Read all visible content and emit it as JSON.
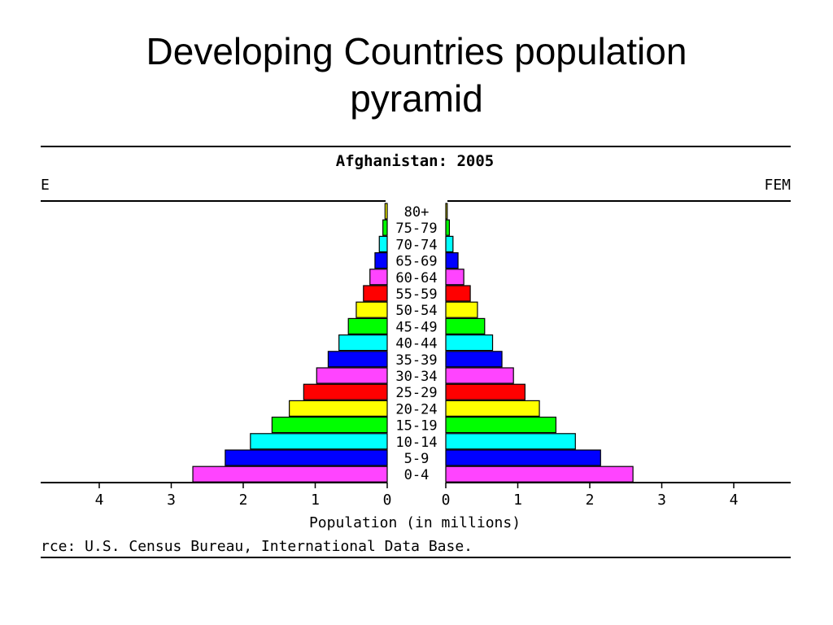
{
  "slide": {
    "title_line1": "Developing Countries population",
    "title_line2": "pyramid"
  },
  "chart_data": {
    "type": "bar",
    "title": "Afghanistan: 2005",
    "left_label": "E",
    "right_label": "FEM",
    "xlabel": "Population (in millions)",
    "source": "rce: U.S. Census Bureau, International Data Base.",
    "categories": [
      "80+",
      "75-79",
      "70-74",
      "65-69",
      "60-64",
      "55-59",
      "50-54",
      "45-49",
      "40-44",
      "35-39",
      "30-34",
      "25-29",
      "20-24",
      "15-19",
      "10-14",
      "5-9",
      "0-4"
    ],
    "series": [
      {
        "values": [
          0.03,
          0.06,
          0.11,
          0.17,
          0.24,
          0.33,
          0.43,
          0.54,
          0.67,
          0.82,
          0.98,
          1.16,
          1.36,
          1.6,
          1.9,
          2.25,
          2.7
        ]
      },
      {
        "values": [
          0.02,
          0.05,
          0.1,
          0.17,
          0.25,
          0.34,
          0.44,
          0.54,
          0.65,
          0.78,
          0.94,
          1.1,
          1.3,
          1.53,
          1.8,
          2.15,
          2.6
        ]
      }
    ],
    "colors": [
      "#ffff00",
      "#00ff00",
      "#00ffff",
      "#0000ff",
      "#ff44ff",
      "#ff0000",
      "#ffff00",
      "#00ff00",
      "#00ffff",
      "#0000ff",
      "#ff44ff",
      "#ff0000",
      "#ffff00",
      "#00ff00",
      "#00ffff",
      "#0000ff",
      "#ff44ff"
    ],
    "left_ticks": [
      4,
      3,
      2,
      1,
      0
    ],
    "right_ticks": [
      0,
      1,
      2,
      3,
      4
    ],
    "xlim": [
      0,
      5
    ]
  }
}
